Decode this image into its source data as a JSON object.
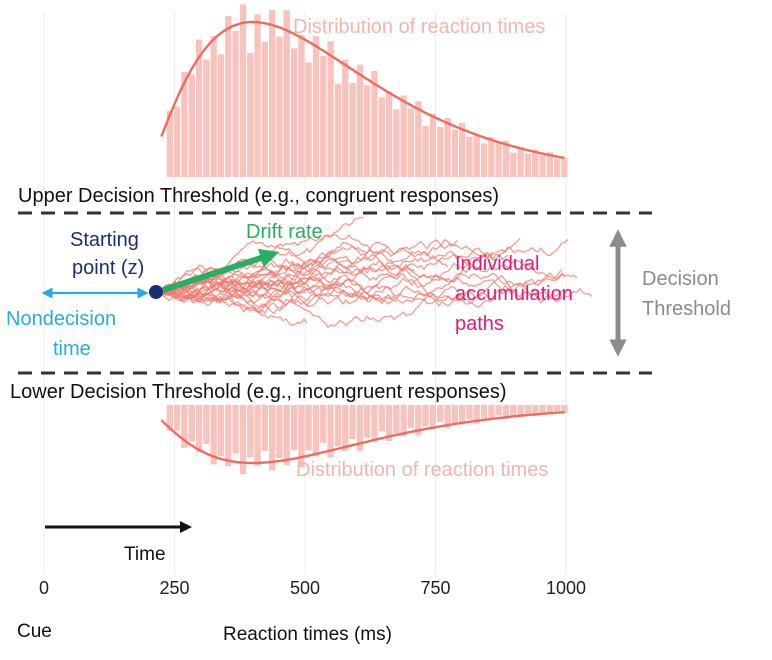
{
  "labels": {
    "upper_distribution": "Distribution of reaction times",
    "lower_distribution": "Distribution of reaction times",
    "upper_threshold": "Upper Decision Threshold (e.g., congruent responses)",
    "lower_threshold": "Lower Decision Threshold (e.g., incongruent responses)",
    "starting_point_1": "Starting",
    "starting_point_2": "point (z)",
    "drift_rate": "Drift rate",
    "nondecision_1": "Nondecision",
    "nondecision_2": "time",
    "paths_1": "Individual",
    "paths_2": "accumulation",
    "paths_3": "paths",
    "decision_threshold_1": "Decision",
    "decision_threshold_2": "Threshold",
    "time": "Time",
    "cue": "Cue",
    "x_axis": "Reaction times (ms)"
  },
  "x_ticks": [
    "0",
    "250",
    "500",
    "750",
    "1000"
  ],
  "x_tick_values": [
    0,
    250,
    500,
    750,
    1000
  ],
  "starting_point_time_ms": 215,
  "colors": {
    "paths": "#f07a6e",
    "histogram": "#f9c3bd",
    "nondecision": "#29abe2",
    "starting_point": "#1b2f6e",
    "drift": "#27ae60",
    "paths_label": "#e6197a",
    "decision_threshold": "#8c8c8c"
  },
  "chart_data": {
    "type": "diagram",
    "xlabel": "Reaction times (ms)",
    "xlim": [
      0,
      1050
    ],
    "x_ticks": [
      0,
      250,
      500,
      750,
      1000
    ]
  }
}
